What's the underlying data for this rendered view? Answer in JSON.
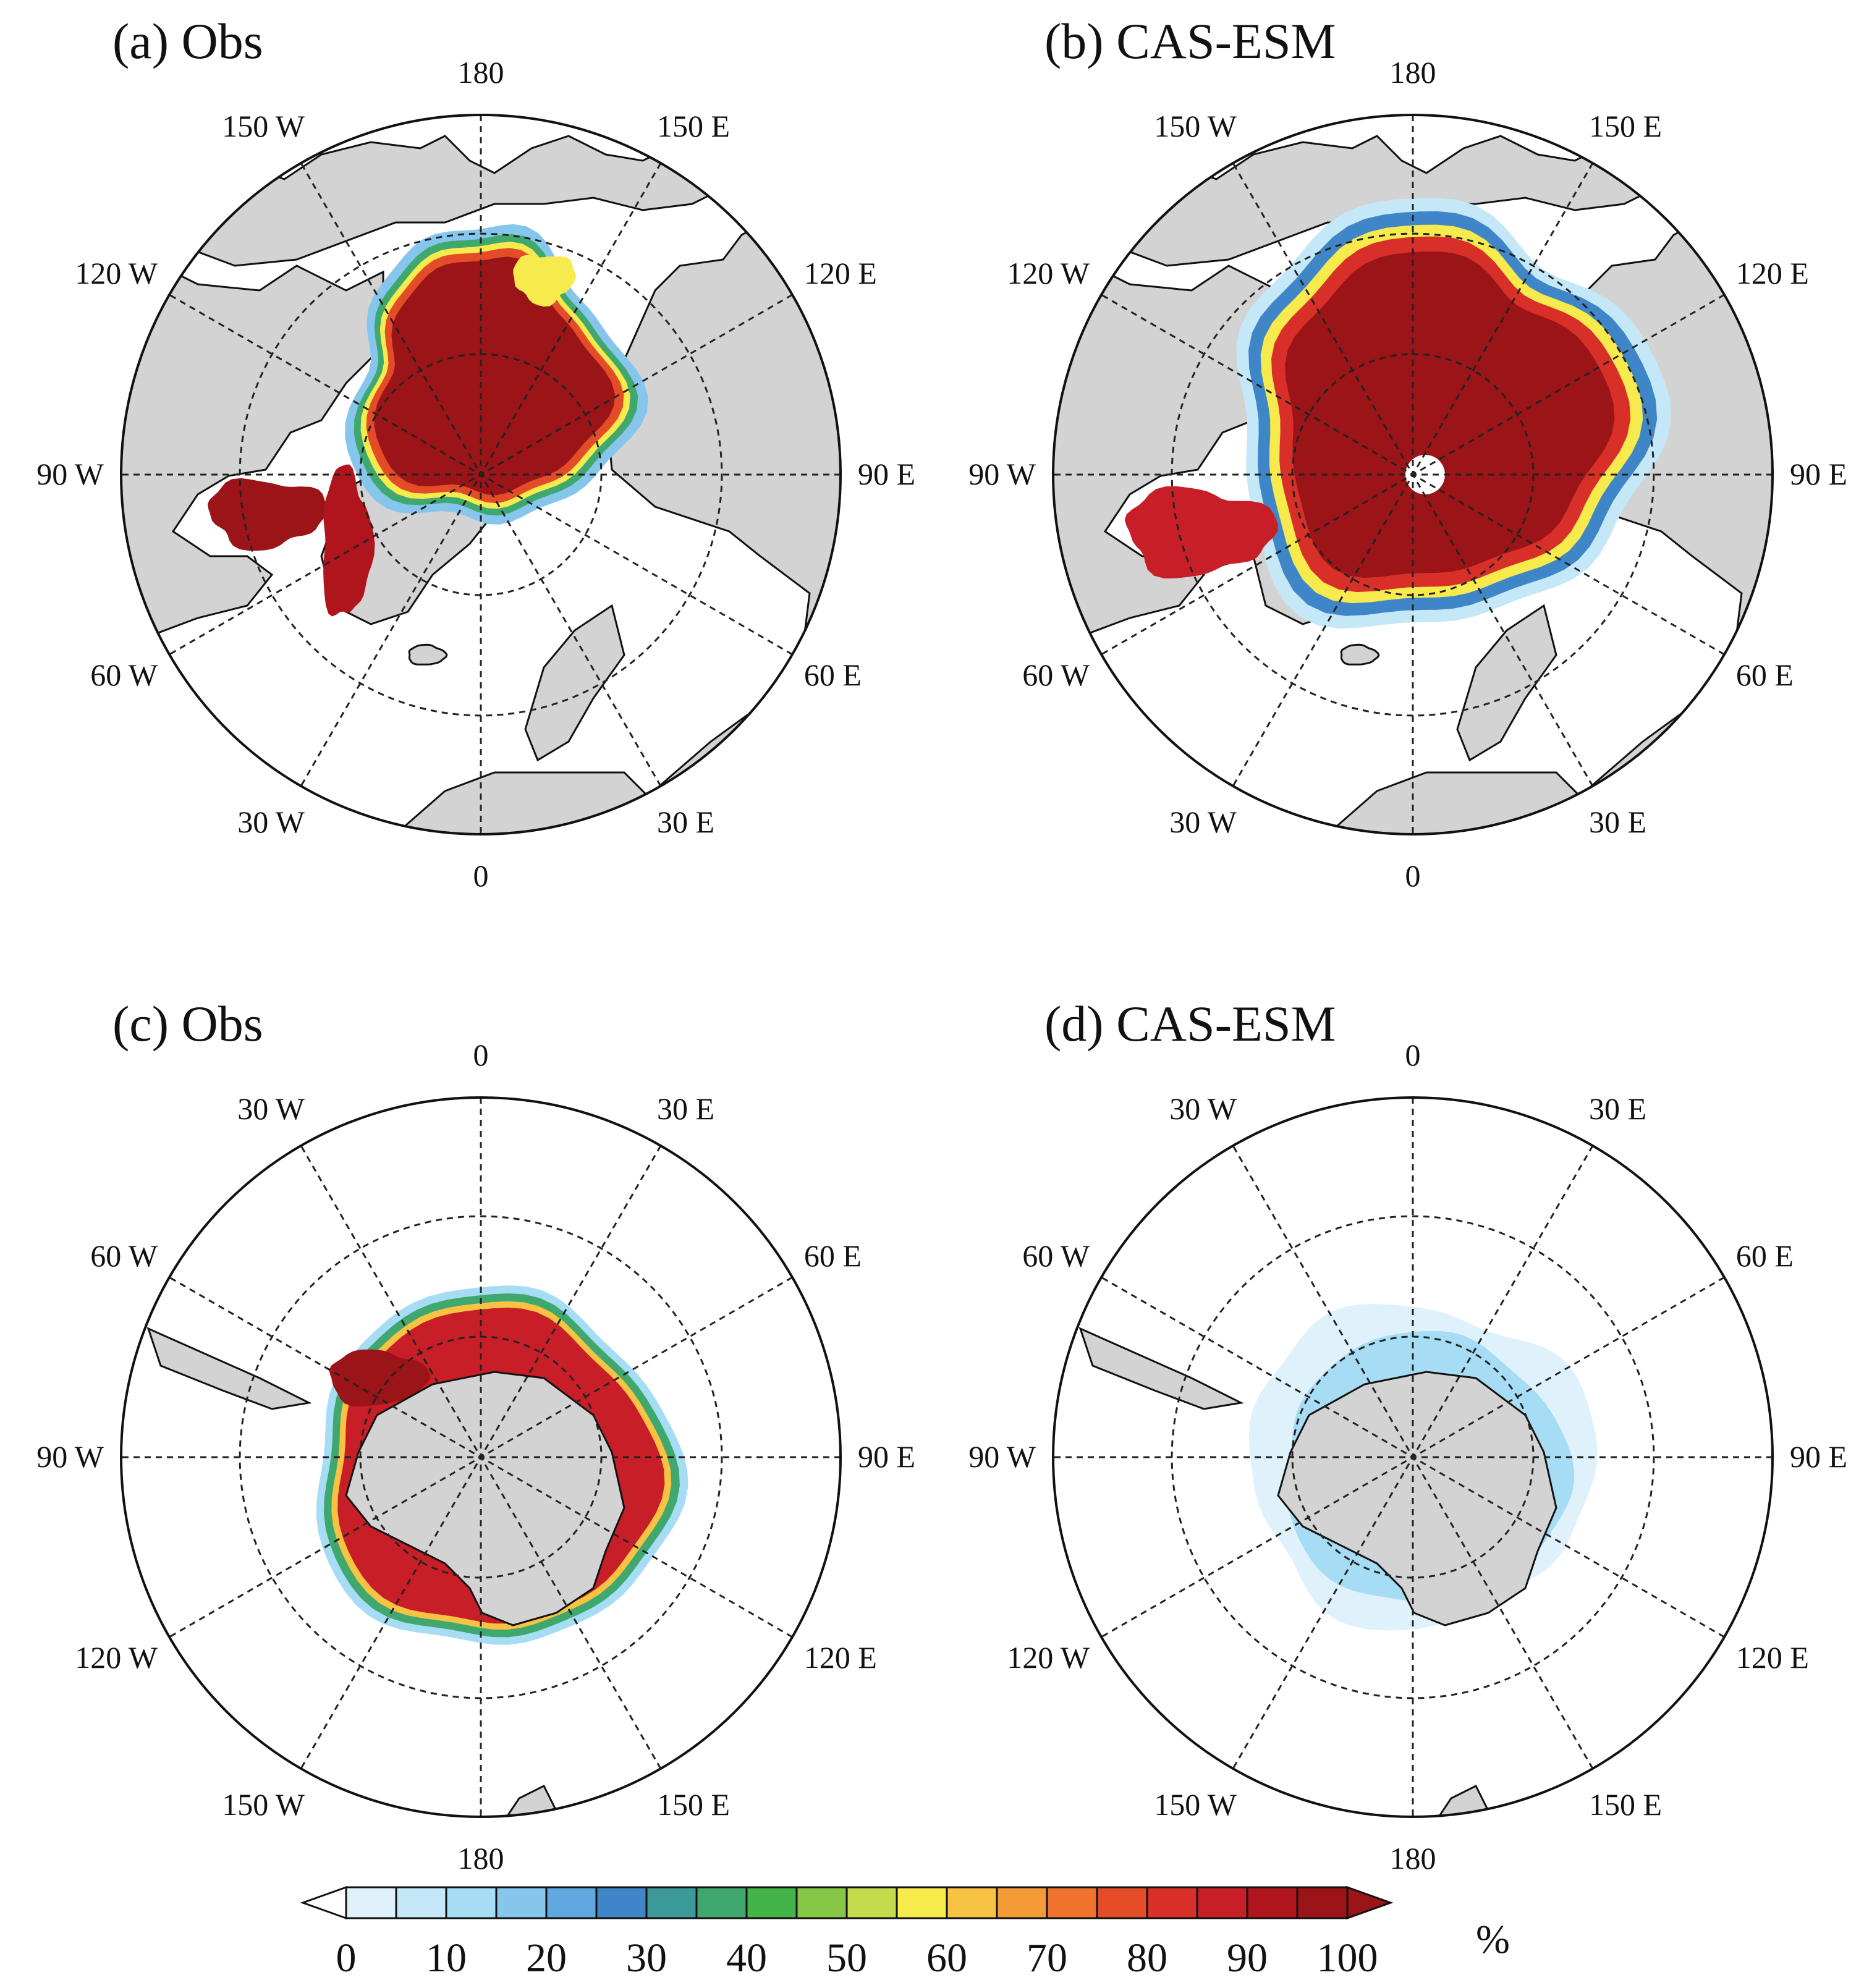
{
  "panels": [
    {
      "id": "a",
      "title": "(a) Obs",
      "hemisphere": "north",
      "lon_labels": [
        "180",
        "150 E",
        "120 E",
        "90 E",
        "60 E",
        "30 E",
        "0",
        "30 W",
        "60 W",
        "90 W",
        "120 W",
        "150 W"
      ],
      "ice_extent": "observed"
    },
    {
      "id": "b",
      "title": "(b) CAS-ESM",
      "hemisphere": "north",
      "lon_labels": [
        "180",
        "150 E",
        "120 E",
        "90 E",
        "60 E",
        "30 E",
        "0",
        "30 W",
        "60 W",
        "90 W",
        "120 W",
        "150 W"
      ],
      "ice_extent": "model"
    },
    {
      "id": "c",
      "title": "(c) Obs",
      "hemisphere": "south",
      "lon_labels": [
        "0",
        "30 E",
        "60 E",
        "90 E",
        "120 E",
        "150 E",
        "180",
        "150  W",
        "120 W",
        "90 W",
        "60 W",
        "30 W"
      ],
      "ice_extent": "observed"
    },
    {
      "id": "d",
      "title": "(d) CAS-ESM",
      "hemisphere": "south",
      "lon_labels": [
        "0",
        "30 E",
        "60 E",
        "90 E",
        "120 E",
        "150 E",
        "180",
        "150 W",
        "120 W",
        "90 W",
        "60 W",
        "30 W"
      ],
      "ice_extent": "model"
    }
  ],
  "colorbar": {
    "unit": "%",
    "tick_labels": [
      "0",
      "10",
      "20",
      "30",
      "40",
      "50",
      "60",
      "70",
      "80",
      "90",
      "100"
    ],
    "levels": [
      0,
      5,
      10,
      15,
      20,
      25,
      30,
      35,
      40,
      45,
      50,
      55,
      60,
      65,
      70,
      75,
      80,
      85,
      90,
      95,
      100
    ],
    "colors": [
      "#dff2fb",
      "#c4e8f8",
      "#a6dcf4",
      "#86c6ec",
      "#5fa8e0",
      "#3f86c8",
      "#3c9a9a",
      "#3fa86e",
      "#43b548",
      "#86c846",
      "#c4dc4c",
      "#f6ea4c",
      "#f8c242",
      "#f49a36",
      "#ef732c",
      "#e44c28",
      "#d83028",
      "#c81e28",
      "#b0141c",
      "#9a1418"
    ],
    "under_color": "#ffffff",
    "over_color": "#9a1418"
  },
  "map_style": {
    "land": "#d3d3d3",
    "ocean": "#ffffff",
    "outline": "#111111",
    "grid": "#222222"
  }
}
